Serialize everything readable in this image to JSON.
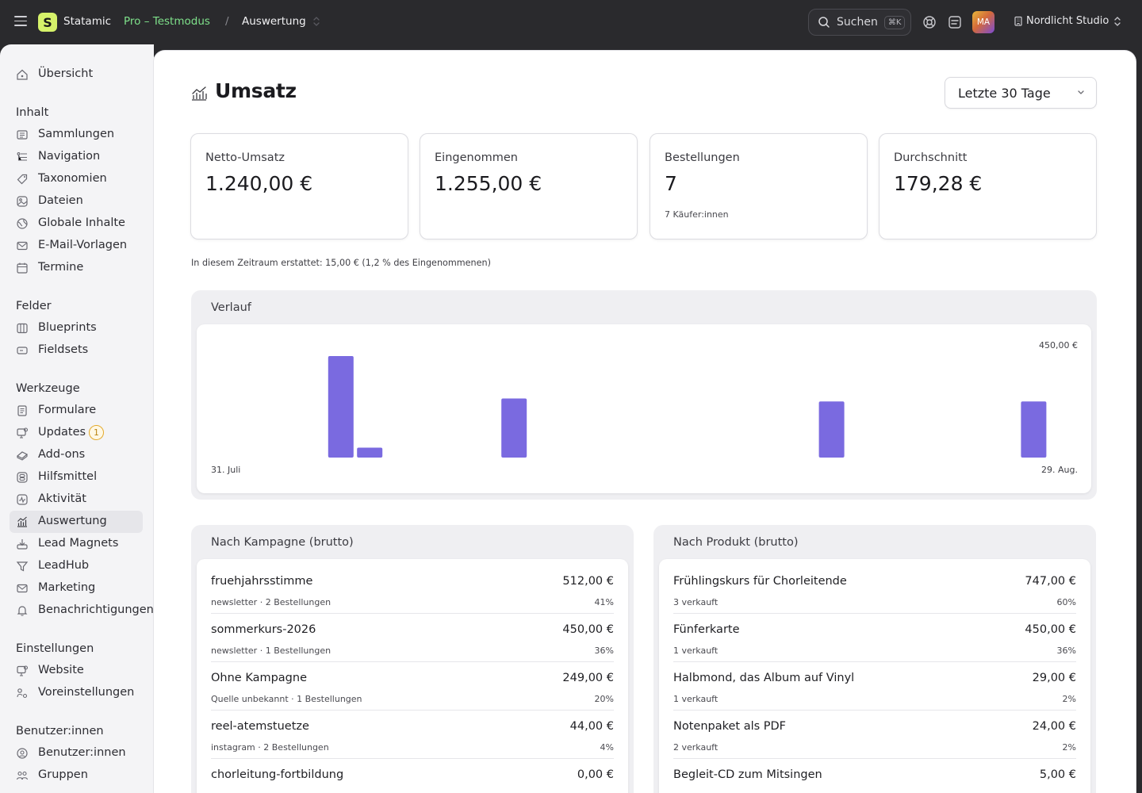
{
  "topbar": {
    "logo_letter": "S",
    "brand": "Statamic",
    "env": "Pro – Testmodus",
    "crumb_sep": "/",
    "crumb": "Auswertung",
    "search_label": "Suchen",
    "search_kbd": "⌘K",
    "avatar_initials": "MA",
    "site_name": "Nordlicht Studio"
  },
  "sidebar": {
    "top": [
      {
        "label": "Übersicht",
        "icon": "home-icon"
      }
    ],
    "groups": [
      {
        "title": "Inhalt",
        "items": [
          {
            "label": "Sammlungen",
            "icon": "collections-icon"
          },
          {
            "label": "Navigation",
            "icon": "navigation-icon"
          },
          {
            "label": "Taxonomien",
            "icon": "tag-icon"
          },
          {
            "label": "Dateien",
            "icon": "assets-icon"
          },
          {
            "label": "Globale Inhalte",
            "icon": "globe-icon"
          },
          {
            "label": "E-Mail-Vorlagen",
            "icon": "mail-icon"
          },
          {
            "label": "Termine",
            "icon": "calendar-icon"
          }
        ]
      },
      {
        "title": "Felder",
        "items": [
          {
            "label": "Blueprints",
            "icon": "blueprint-icon"
          },
          {
            "label": "Fieldsets",
            "icon": "fieldset-icon"
          }
        ]
      },
      {
        "title": "Werkzeuge",
        "items": [
          {
            "label": "Formulare",
            "icon": "form-icon"
          },
          {
            "label": "Updates",
            "icon": "updates-icon",
            "badge": "1"
          },
          {
            "label": "Add-ons",
            "icon": "addons-icon"
          },
          {
            "label": "Hilfsmittel",
            "icon": "utilities-icon"
          },
          {
            "label": "Aktivität",
            "icon": "activity-icon"
          },
          {
            "label": "Auswertung",
            "icon": "chart-icon",
            "active": true
          },
          {
            "label": "Lead Magnets",
            "icon": "download-icon"
          },
          {
            "label": "LeadHub",
            "icon": "filter-icon"
          },
          {
            "label": "Marketing",
            "icon": "mail-icon"
          },
          {
            "label": "Benachrichtigungen",
            "icon": "bell-icon"
          }
        ]
      },
      {
        "title": "Einstellungen",
        "items": [
          {
            "label": "Website",
            "icon": "site-icon"
          },
          {
            "label": "Voreinstellungen",
            "icon": "preferences-icon"
          }
        ]
      },
      {
        "title": "Benutzer:innen",
        "items": [
          {
            "label": "Benutzer:innen",
            "icon": "users-icon"
          },
          {
            "label": "Gruppen",
            "icon": "groups-icon"
          }
        ]
      }
    ]
  },
  "page": {
    "title": "Umsatz",
    "range": "Letzte 30 Tage",
    "kpis": [
      {
        "label": "Netto-Umsatz",
        "value": "1.240,00 €",
        "sub": ""
      },
      {
        "label": "Eingenommen",
        "value": "1.255,00 €",
        "sub": ""
      },
      {
        "label": "Bestellungen",
        "value": "7",
        "sub": "7 Käufer:innen"
      },
      {
        "label": "Durchschnitt",
        "value": "179,28 €",
        "sub": ""
      }
    ],
    "refund_note": "In diesem Zeitraum erstattet: 15,00 € (1,2 % des Eingenommenen)"
  },
  "chart_data": {
    "type": "bar",
    "title": "Verlauf",
    "max_label": "450,00 €",
    "start_label": "31. Juli",
    "end_label": "29. Aug.",
    "ylim": [
      0,
      450
    ],
    "bar_color": "#7a6ae0",
    "days": 30,
    "points": [
      {
        "day": 4,
        "value": 450
      },
      {
        "day": 5,
        "value": 44
      },
      {
        "day": 10,
        "value": 262
      },
      {
        "day": 21,
        "value": 249
      },
      {
        "day": 28,
        "value": 249
      }
    ]
  },
  "campaigns": {
    "title": "Nach Kampagne (brutto)",
    "rows": [
      {
        "name": "fruehjahrsstimme",
        "meta": "newsletter · 2 Bestellungen",
        "amount": "512,00 €",
        "pct": "41%"
      },
      {
        "name": "sommerkurs-2026",
        "meta": "newsletter · 1 Bestellungen",
        "amount": "450,00 €",
        "pct": "36%"
      },
      {
        "name": "Ohne Kampagne",
        "meta": "Quelle unbekannt · 1 Bestellungen",
        "amount": "249,00 €",
        "pct": "20%"
      },
      {
        "name": "reel-atemstuetze",
        "meta": "instagram · 2 Bestellungen",
        "amount": "44,00 €",
        "pct": "4%"
      },
      {
        "name": "chorleitung-fortbildung",
        "meta": "",
        "amount": "0,00 €",
        "pct": ""
      }
    ]
  },
  "products": {
    "title": "Nach Produkt (brutto)",
    "rows": [
      {
        "name": "Frühlingskurs für Chorleitende",
        "meta": "3 verkauft",
        "amount": "747,00 €",
        "pct": "60%"
      },
      {
        "name": "Fünferkarte",
        "meta": "1 verkauft",
        "amount": "450,00 €",
        "pct": "36%"
      },
      {
        "name": "Halbmond, das Album auf Vinyl",
        "meta": "1 verkauft",
        "amount": "29,00 €",
        "pct": "2%"
      },
      {
        "name": "Notenpaket als PDF",
        "meta": "2 verkauft",
        "amount": "24,00 €",
        "pct": "2%"
      },
      {
        "name": "Begleit-CD zum Mitsingen",
        "meta": "",
        "amount": "5,00 €",
        "pct": ""
      }
    ]
  }
}
